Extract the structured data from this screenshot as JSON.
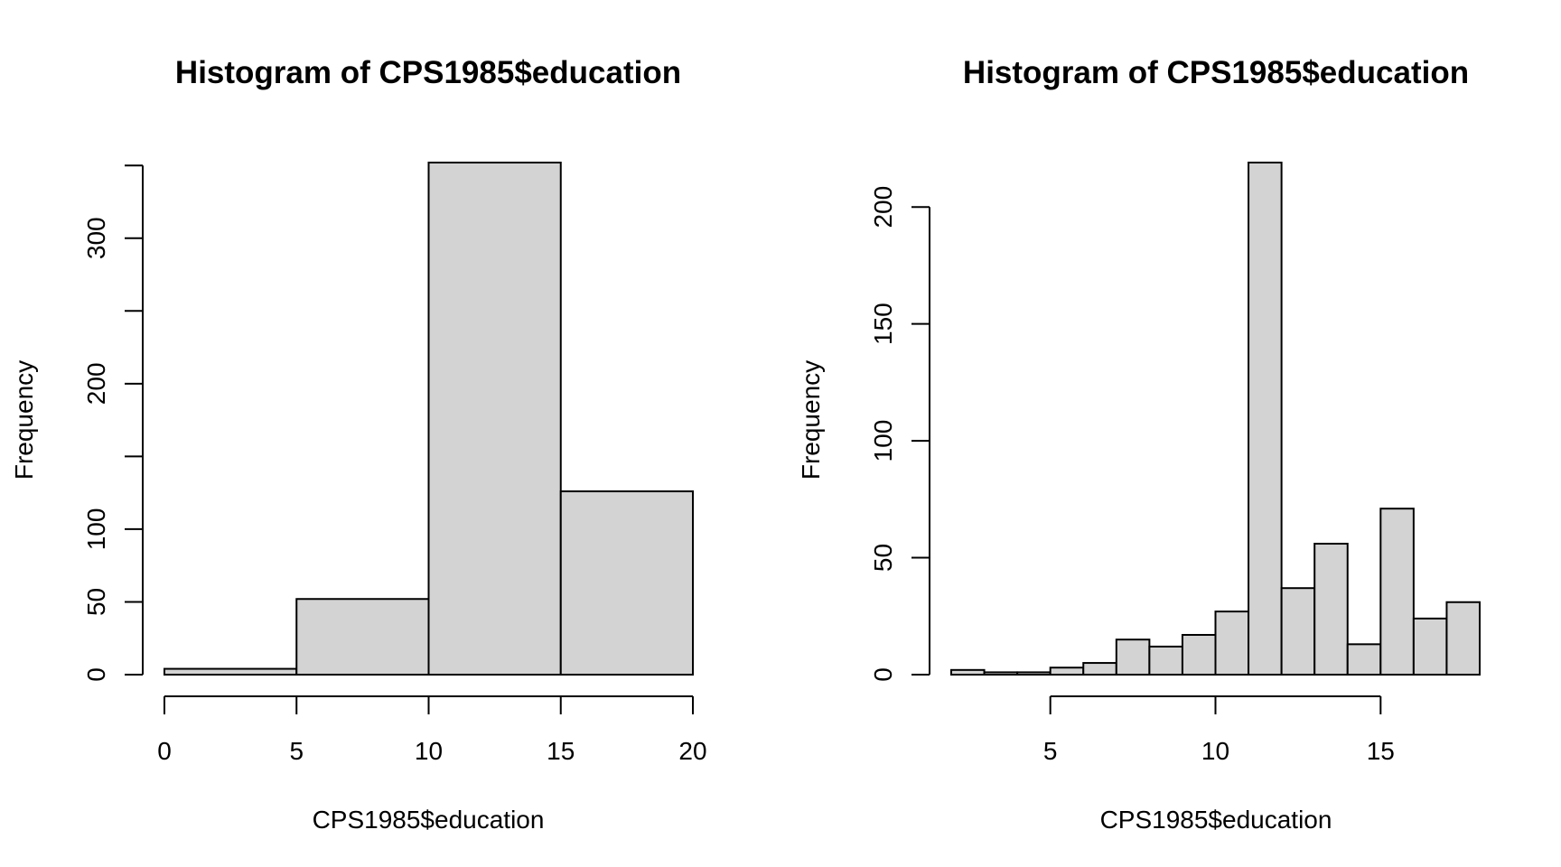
{
  "colors": {
    "bar_fill": "#d3d3d3",
    "bar_stroke": "#000000",
    "axis": "#000000",
    "background": "#ffffff"
  },
  "chart_data": [
    {
      "type": "bar",
      "subtype": "histogram",
      "title": "Histogram of CPS1985$education",
      "xlabel": "CPS1985$education",
      "ylabel": "Frequency",
      "grid": false,
      "bins": [
        {
          "start": 0,
          "end": 5,
          "value": 4
        },
        {
          "start": 5,
          "end": 10,
          "value": 52
        },
        {
          "start": 10,
          "end": 15,
          "value": 352
        },
        {
          "start": 15,
          "end": 20,
          "value": 126
        }
      ],
      "xticks": [
        0,
        5,
        10,
        15,
        20
      ],
      "yticks": [
        0,
        50,
        100,
        150,
        200,
        250,
        300,
        350
      ],
      "ytick_labels": [
        "0",
        "50",
        "100",
        "",
        "200",
        "",
        "300",
        ""
      ],
      "xlim": [
        0,
        20
      ],
      "ylim": [
        0,
        352
      ]
    },
    {
      "type": "bar",
      "subtype": "histogram",
      "title": "Histogram of CPS1985$education",
      "xlabel": "CPS1985$education",
      "ylabel": "Frequency",
      "grid": false,
      "bins": [
        {
          "start": 2,
          "end": 3,
          "value": 2
        },
        {
          "start": 3,
          "end": 4,
          "value": 1
        },
        {
          "start": 4,
          "end": 5,
          "value": 1
        },
        {
          "start": 5,
          "end": 6,
          "value": 3
        },
        {
          "start": 6,
          "end": 7,
          "value": 5
        },
        {
          "start": 7,
          "end": 8,
          "value": 15
        },
        {
          "start": 8,
          "end": 9,
          "value": 12
        },
        {
          "start": 9,
          "end": 10,
          "value": 17
        },
        {
          "start": 10,
          "end": 11,
          "value": 27
        },
        {
          "start": 11,
          "end": 12,
          "value": 219
        },
        {
          "start": 12,
          "end": 13,
          "value": 37
        },
        {
          "start": 13,
          "end": 14,
          "value": 56
        },
        {
          "start": 14,
          "end": 15,
          "value": 13
        },
        {
          "start": 15,
          "end": 16,
          "value": 71
        },
        {
          "start": 16,
          "end": 17,
          "value": 24
        },
        {
          "start": 17,
          "end": 18,
          "value": 31
        }
      ],
      "xticks": [
        5,
        10,
        15
      ],
      "yticks": [
        0,
        50,
        100,
        150,
        200
      ],
      "ytick_labels": [
        "0",
        "50",
        "100",
        "150",
        "200"
      ],
      "xlim": [
        2,
        18
      ],
      "ylim": [
        0,
        219
      ]
    }
  ]
}
